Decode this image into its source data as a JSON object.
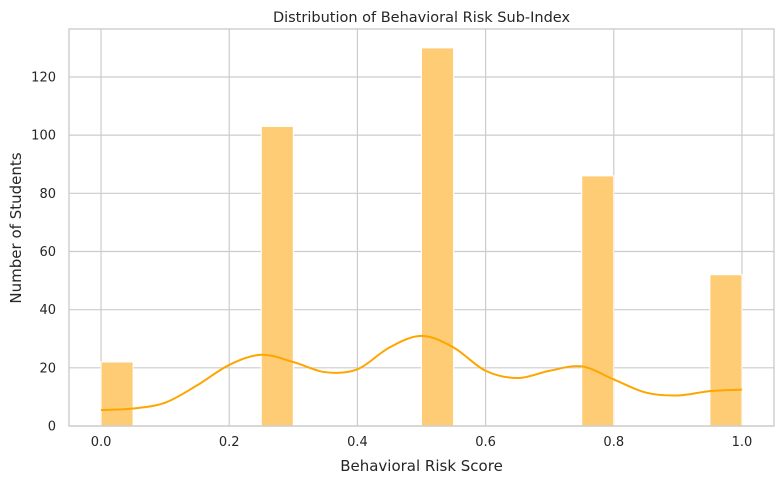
{
  "chart_data": {
    "type": "bar",
    "title": "Distribution of Behavioral Risk Sub-Index",
    "xlabel": "Behavioral Risk Score",
    "ylabel": "Number of Students",
    "xlim": [
      -0.05,
      1.05
    ],
    "ylim": [
      0,
      136.5
    ],
    "xticks": [
      "0.0",
      "0.2",
      "0.4",
      "0.6",
      "0.8",
      "1.0"
    ],
    "yticks": [
      "0",
      "20",
      "40",
      "60",
      "80",
      "100",
      "120"
    ],
    "grid": true,
    "bin_width": 0.05,
    "bars": [
      {
        "x0": 0.0,
        "x1": 0.05,
        "value": 22
      },
      {
        "x0": 0.25,
        "x1": 0.3,
        "value": 103
      },
      {
        "x0": 0.5,
        "x1": 0.55,
        "value": 130
      },
      {
        "x0": 0.75,
        "x1": 0.8,
        "value": 86
      },
      {
        "x0": 0.95,
        "x1": 1.0,
        "value": 52
      }
    ],
    "kde": {
      "x": [
        0.0,
        0.05,
        0.1,
        0.15,
        0.2,
        0.25,
        0.3,
        0.35,
        0.4,
        0.45,
        0.5,
        0.55,
        0.6,
        0.65,
        0.7,
        0.75,
        0.8,
        0.85,
        0.9,
        0.95,
        1.0
      ],
      "y": [
        5.5,
        6,
        8,
        14,
        21,
        24.5,
        22,
        18.5,
        19.5,
        27,
        31,
        27,
        19,
        16.5,
        19,
        20.5,
        16,
        11.5,
        10.5,
        12,
        12.5
      ]
    },
    "colors": {
      "bar": "#FECC75",
      "line": "#FFA500",
      "grid": "#CCCCCC",
      "spine": "#CCCCCC"
    }
  }
}
